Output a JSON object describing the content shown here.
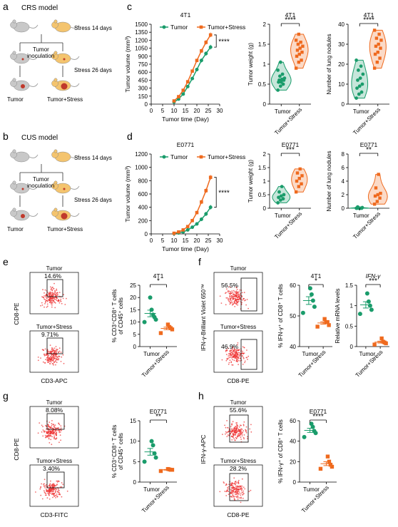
{
  "colors": {
    "tumor": "#1a9c6b",
    "stress": "#ef6a1e",
    "flow_dot": "#ee2b2b",
    "mouse_grey": "#c8c8c8",
    "mouse_yellow": "#f4c46e"
  },
  "labels": {
    "a": "a",
    "b": "b",
    "c": "c",
    "d": "d",
    "e": "e",
    "f": "f",
    "g": "g",
    "h": "h",
    "crs_title": "CRS model",
    "cus_title": "CUS model",
    "stress14": "Stress 14 days",
    "stress26": "Stress 26 days",
    "inoc1": "Tumor",
    "inoc2": "inoculation",
    "tumor": "Tumor",
    "tumor_stress": "Tumor+Stress",
    "sig4": "****",
    "sig3": "***",
    "sig2": "**",
    "sig1": "*",
    "t4t1": "4T1",
    "te0771": "E0771",
    "tv_y": "Tumor volume (mm³)",
    "tv_x": "Tumor time  (Day)",
    "tw_y": "Tumor weight (g)",
    "ln_y": "Number of lung nodules",
    "cd8": "CD8-PE",
    "cd3apc": "CD3-APC",
    "cd3fitc": "CD3-FITC",
    "ifn_bv": "IFN-γ-Brilliant Violet 650™",
    "ifn_apc": "IFN-γ-APC",
    "e_y1": "% CD3⁺CD8⁺ T cells",
    "e_y2": "of CD45⁺ cells",
    "f_y": "% IFN-γ⁺ of CD8⁺ T cells",
    "f_y2": "Relative mRNA levels",
    "ifng": "IFN-γ",
    "ln_y2": "Number of lung nodules",
    "e_pct1": "14.6%",
    "e_pct2": "9.71%",
    "f_pct1": "56.5%",
    "f_pct2": "46.9%",
    "g_pct1": "8.08%",
    "g_pct2": "3.40%",
    "h_pct1": "55.6%",
    "h_pct2": "28.2%"
  },
  "chart_data": [
    {
      "id": "c1",
      "type": "line",
      "title": "4T1",
      "xlabel": "Tumor time  (Day)",
      "ylabel": "Tumor volume (mm³)",
      "xlim": [
        0,
        30
      ],
      "ylim": [
        0,
        1500
      ],
      "xticks": [
        0,
        5,
        10,
        15,
        20,
        25,
        30
      ],
      "yticks": [
        0,
        150,
        300,
        450,
        600,
        750,
        900,
        1050,
        1200,
        1350,
        1500
      ],
      "x": [
        10,
        12,
        14,
        16,
        18,
        20,
        22,
        24,
        26
      ],
      "series": [
        {
          "name": "Tumor",
          "values": [
            40,
            95,
            190,
            330,
            480,
            650,
            820,
            950,
            1070
          ]
        },
        {
          "name": "Tumor+Stress",
          "values": [
            60,
            140,
            260,
            420,
            620,
            820,
            1000,
            1160,
            1300
          ]
        }
      ],
      "legend": "top",
      "significance": "****"
    },
    {
      "id": "c2",
      "type": "violin",
      "title": "4T1",
      "ylabel": "Tumor weight (g)",
      "ylim": [
        0,
        2.0
      ],
      "yticks": [
        0,
        0.5,
        1.0,
        1.5,
        2.0
      ],
      "categories": [
        "Tumor",
        "Tumor+Stress"
      ],
      "values": [
        [
          0.35,
          0.45,
          0.5,
          0.55,
          0.55,
          0.6,
          0.6,
          0.62,
          0.65,
          0.7,
          0.75,
          0.85,
          1.05
        ],
        [
          0.9,
          1.05,
          1.1,
          1.2,
          1.25,
          1.3,
          1.35,
          1.4,
          1.45,
          1.5,
          1.55,
          1.6,
          1.75
        ]
      ],
      "significance": "****"
    },
    {
      "id": "c3",
      "type": "violin",
      "title": "4T1",
      "ylabel": "Number of lung nodules",
      "ylim": [
        0,
        40
      ],
      "yticks": [
        0,
        10,
        20,
        30,
        40
      ],
      "categories": [
        "Tumor",
        "Tumor+Stress"
      ],
      "values": [
        [
          3,
          5,
          6,
          8,
          9,
          10,
          12,
          13,
          15,
          17,
          19,
          22
        ],
        [
          18,
          21,
          23,
          25,
          26,
          28,
          29,
          30,
          32,
          33,
          35,
          37
        ]
      ],
      "significance": "****"
    },
    {
      "id": "d1",
      "type": "line",
      "title": "E0771",
      "xlabel": "Tumor time  (Day)",
      "ylabel": "Tumor volume (mm³)",
      "xlim": [
        0,
        30
      ],
      "ylim": [
        0,
        1200
      ],
      "xticks": [
        0,
        5,
        10,
        15,
        20,
        25,
        30
      ],
      "yticks": [
        0,
        200,
        400,
        600,
        800,
        1000,
        1200
      ],
      "x": [
        10,
        12,
        14,
        16,
        18,
        20,
        22,
        24,
        26
      ],
      "series": [
        {
          "name": "Tumor",
          "values": [
            5,
            15,
            30,
            60,
            100,
            150,
            220,
            300,
            400
          ]
        },
        {
          "name": "Tumor+Stress",
          "values": [
            10,
            30,
            60,
            110,
            200,
            320,
            480,
            650,
            850
          ]
        }
      ],
      "legend": "top",
      "significance": "****"
    },
    {
      "id": "d2",
      "type": "violin",
      "title": "E0771",
      "ylabel": "Tumor weight (g)",
      "ylim": [
        0,
        2.0
      ],
      "yticks": [
        0,
        0.5,
        1.0,
        1.5,
        2.0
      ],
      "categories": [
        "Tumor",
        "Tumor+Stress"
      ],
      "values": [
        [
          0.2,
          0.3,
          0.35,
          0.4,
          0.45,
          0.5,
          0.6,
          0.8
        ],
        [
          0.6,
          0.8,
          0.9,
          1.0,
          1.1,
          1.2,
          1.3,
          1.45
        ]
      ],
      "significance": "***"
    },
    {
      "id": "d3",
      "type": "violin",
      "title": "E0771",
      "ylabel": "Number of lung nodules",
      "ylim": [
        0,
        8
      ],
      "yticks": [
        0,
        2,
        4,
        6,
        8
      ],
      "categories": [
        "Tumor",
        "Tumor+Stress"
      ],
      "values": [
        [
          0,
          0,
          0,
          0,
          0,
          0.1,
          0.2
        ],
        [
          0.6,
          1,
          1.5,
          1.8,
          2,
          2.2,
          3,
          5
        ]
      ],
      "significance": "**"
    },
    {
      "id": "e",
      "type": "scatter",
      "title": "4T1",
      "ylabel": "% CD3⁺CD8⁺ T cells of CD45⁺ cells",
      "ylim": [
        0,
        25
      ],
      "yticks": [
        0,
        5,
        10,
        15,
        20,
        25
      ],
      "categories": [
        "Tumor",
        "Tumor+Stress"
      ],
      "values": [
        [
          10,
          11,
          12,
          13,
          15,
          20
        ],
        [
          5.5,
          7,
          7.5,
          8,
          9
        ]
      ],
      "significance": "*"
    },
    {
      "id": "f1",
      "type": "scatter",
      "title": "4T1",
      "ylabel": "% IFN-γ⁺ of CD8⁺ T cells",
      "ylim": [
        40,
        60
      ],
      "yticks": [
        40,
        50,
        60
      ],
      "categories": [
        "Tumor",
        "Tumor+Stress"
      ],
      "values": [
        [
          51,
          53,
          55,
          57,
          59
        ],
        [
          46.5,
          47,
          48,
          48,
          49
        ]
      ],
      "significance": "*"
    },
    {
      "id": "f2",
      "type": "scatter",
      "title": "IFN-γ",
      "ylabel": "Relative mRNA levels",
      "ylim": [
        0,
        1.5
      ],
      "yticks": [
        0,
        0.5,
        1.0,
        1.5
      ],
      "categories": [
        "Tumor",
        "Tumor+Stress"
      ],
      "values": [
        [
          0.8,
          0.9,
          1.0,
          1.1,
          1.3
        ],
        [
          0.05,
          0.08,
          0.1,
          0.12,
          0.2
        ]
      ],
      "significance": "***"
    },
    {
      "id": "g",
      "type": "scatter",
      "title": "E0771",
      "ylabel": "% CD3⁺CD8⁺ T cells of CD45⁺ cells",
      "ylim": [
        0,
        15
      ],
      "yticks": [
        0,
        5,
        10,
        15
      ],
      "categories": [
        "Tumor",
        "Tumor+Stress"
      ],
      "values": [
        [
          5,
          6,
          7,
          9,
          10
        ],
        [
          2.7,
          3,
          3,
          3.1,
          3.2
        ]
      ],
      "significance": "**"
    },
    {
      "id": "h",
      "type": "scatter",
      "title": "E0771",
      "ylabel": "% IFN-γ⁺ of CD8⁺ T cells",
      "ylim": [
        0,
        60
      ],
      "yticks": [
        0,
        20,
        40,
        60
      ],
      "categories": [
        "Tumor",
        "Tumor+Stress"
      ],
      "values": [
        [
          44,
          48,
          50,
          54,
          57
        ],
        [
          13,
          15,
          17,
          20,
          25
        ]
      ],
      "significance": "****"
    }
  ]
}
